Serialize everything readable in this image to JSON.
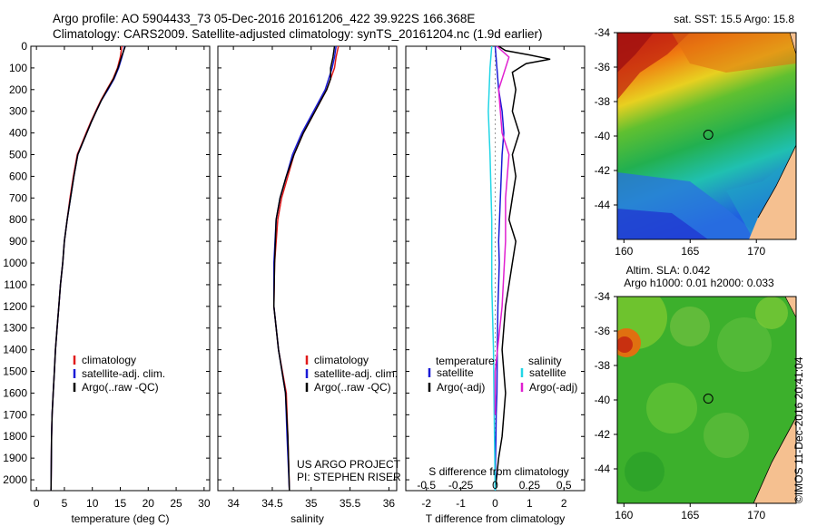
{
  "header": {
    "line1": "Argo profile: AO 5904433_73 05-Dec-2016 20161206_422 39.922S 166.368E",
    "line2": "Climatology: CARS2009. Satellite-adjusted climatology: synTS_20161204.nc (1.9d earlier)"
  },
  "credit": "©IMOS 11-Dec-2016 20:41:04",
  "colors": {
    "climatology": "#e01b1b",
    "satellite": "#1a1ad6",
    "argo": "#000000",
    "salinity_satellite": "#22d6e6",
    "salinity_argo": "#e020d0"
  },
  "chart_data": [
    {
      "type": "line",
      "id": "temperature",
      "xlabel": "temperature (deg C)",
      "ylabel": "",
      "xlim": [
        -1,
        31
      ],
      "ylim": [
        2050,
        0
      ],
      "xticks": [
        0,
        5,
        10,
        15,
        20,
        25,
        30
      ],
      "yticks": [
        0,
        100,
        200,
        300,
        400,
        500,
        600,
        700,
        800,
        900,
        1000,
        1100,
        1200,
        1300,
        1400,
        1500,
        1600,
        1700,
        1800,
        1900,
        2000
      ],
      "legend": [
        "climatology",
        "satellite-adj. clim.",
        "Argo(..raw -QC)"
      ],
      "series": [
        {
          "name": "climatology",
          "color": "#e01b1b",
          "x": [
            15.3,
            15.0,
            14.5,
            13.7,
            12.6,
            11.5,
            10.6,
            9.7,
            8.9,
            8.1,
            7.3,
            6.6,
            6.0,
            5.5,
            5.0,
            4.7,
            4.3,
            4.0,
            3.7,
            3.4,
            3.2,
            3.0,
            2.8,
            2.7,
            2.6
          ],
          "y": [
            0,
            50,
            100,
            150,
            200,
            250,
            300,
            350,
            400,
            450,
            500,
            600,
            700,
            800,
            900,
            1000,
            1100,
            1200,
            1300,
            1400,
            1500,
            1600,
            1700,
            1800,
            2050
          ]
        },
        {
          "name": "satellite-adj. clim.",
          "color": "#1a1ad6",
          "x": [
            15.8,
            15.3,
            14.7,
            13.9,
            12.8,
            11.6,
            10.7,
            9.8,
            9.0,
            8.2,
            7.4,
            6.7,
            6.1,
            5.5,
            5.0,
            4.7,
            4.3,
            4.0,
            3.7,
            3.4,
            3.2,
            3.0,
            2.8,
            2.7,
            2.6
          ],
          "y": [
            0,
            50,
            100,
            150,
            200,
            250,
            300,
            350,
            400,
            450,
            500,
            600,
            700,
            800,
            900,
            1000,
            1100,
            1200,
            1300,
            1400,
            1500,
            1600,
            1700,
            1800,
            2050
          ]
        },
        {
          "name": "Argo(..raw -QC)",
          "color": "#000000",
          "x": [
            15.9,
            15.2,
            14.6,
            13.8,
            12.7,
            11.6,
            10.7,
            9.8,
            9.0,
            8.2,
            7.4,
            6.7,
            6.1,
            5.5,
            5.0,
            4.7,
            4.3,
            4.0,
            3.7,
            3.4,
            3.2,
            3.0,
            2.8,
            2.7,
            2.6
          ],
          "y": [
            0,
            50,
            100,
            150,
            200,
            250,
            300,
            350,
            400,
            450,
            500,
            600,
            700,
            800,
            900,
            1000,
            1100,
            1200,
            1300,
            1400,
            1500,
            1600,
            1700,
            1800,
            2050
          ]
        }
      ]
    },
    {
      "type": "line",
      "id": "salinity",
      "xlabel": "salinity",
      "xlim": [
        33.8,
        36.1
      ],
      "ylim": [
        2050,
        0
      ],
      "xticks": [
        34,
        34.5,
        35,
        35.5,
        36
      ],
      "legend": [
        "climatology",
        "satellite-adj. clim.",
        "Argo(..raw -QC)"
      ],
      "annotation": [
        "US ARGO PROJECT",
        "PI: STEPHEN RISER"
      ],
      "series": [
        {
          "name": "climatology",
          "color": "#e01b1b",
          "x": [
            35.35,
            35.32,
            35.3,
            35.2,
            35.05,
            34.9,
            34.78,
            34.7,
            34.62,
            34.57,
            34.53,
            34.52,
            34.58,
            34.68,
            34.7,
            34.72
          ],
          "y": [
            0,
            50,
            100,
            200,
            300,
            400,
            500,
            600,
            700,
            800,
            1000,
            1200,
            1400,
            1600,
            1800,
            2050
          ]
        },
        {
          "name": "satellite-adj. clim.",
          "color": "#1a1ad6",
          "x": [
            35.32,
            35.3,
            35.27,
            35.18,
            35.03,
            34.88,
            34.76,
            34.68,
            34.6,
            34.55,
            34.52,
            34.52,
            34.58,
            34.67,
            34.69,
            34.72
          ],
          "y": [
            0,
            50,
            100,
            200,
            300,
            400,
            500,
            600,
            700,
            800,
            1000,
            1200,
            1400,
            1600,
            1800,
            2050
          ]
        },
        {
          "name": "Argo(..raw -QC)",
          "color": "#000000",
          "x": [
            35.3,
            35.28,
            35.25,
            35.25,
            35.2,
            35.05,
            34.9,
            34.78,
            34.68,
            34.6,
            34.55,
            34.53,
            34.52,
            34.58,
            34.67,
            34.7,
            34.72
          ],
          "y": [
            0,
            50,
            100,
            150,
            200,
            300,
            400,
            500,
            600,
            700,
            800,
            1000,
            1200,
            1400,
            1600,
            1800,
            2050
          ]
        }
      ]
    },
    {
      "type": "line",
      "id": "difference",
      "xlabel": "T difference from climatology",
      "top_xlabel": "S difference from climatology",
      "xlim": [
        -2.6,
        2.6
      ],
      "ylim": [
        2050,
        0
      ],
      "xticks": [
        -2,
        -1,
        0,
        1,
        2
      ],
      "top_ticks": [
        "-0.5",
        "-0.25",
        "0",
        "0.25",
        "0.5"
      ],
      "legend_headers": [
        "temperature",
        "salinity"
      ],
      "legend": [
        "satellite",
        "Argo(-adj)",
        "satellite",
        "Argo(-adj)"
      ],
      "series": [
        {
          "name": "temperature satellite",
          "color": "#1a1ad6",
          "x": [
            0.0,
            0.05,
            0.1,
            0.2,
            0.25,
            0.2,
            0.15,
            0.1,
            0.12,
            0.1,
            0.08,
            0.06,
            0.05,
            0.03,
            0.02,
            0.01,
            0.0
          ],
          "y": [
            0,
            100,
            200,
            300,
            400,
            500,
            700,
            900,
            1000,
            1100,
            1200,
            1400,
            1600,
            1700,
            1800,
            1900,
            2050
          ]
        },
        {
          "name": "temperature Argo(-adj)",
          "color": "#000000",
          "x": [
            0.1,
            0.3,
            1.0,
            1.6,
            0.9,
            0.5,
            0.6,
            0.5,
            0.7,
            0.5,
            0.6,
            0.5,
            0.4,
            0.6,
            0.5,
            0.4,
            0.3,
            0.2,
            0.3,
            0.2,
            0.1,
            0.0
          ],
          "y": [
            0,
            20,
            40,
            60,
            80,
            120,
            200,
            300,
            400,
            500,
            600,
            700,
            800,
            900,
            1000,
            1100,
            1200,
            1400,
            1600,
            1800,
            1900,
            2050
          ]
        },
        {
          "name": "salinity satellite",
          "color": "#22d6e6",
          "x": [
            -0.1,
            -0.15,
            -0.2,
            -0.15,
            -0.1,
            -0.1,
            -0.05,
            -0.03,
            0.0
          ],
          "y": [
            0,
            100,
            300,
            500,
            800,
            1100,
            1400,
            1700,
            2050
          ]
        },
        {
          "name": "salinity Argo(-adj)",
          "color": "#e020d0",
          "x": [
            0.05,
            0.4,
            0.1,
            0.2,
            0.4,
            0.3,
            0.3,
            0.2,
            0.0,
            0.0
          ],
          "y": [
            0,
            50,
            200,
            400,
            500,
            700,
            900,
            1200,
            1500,
            1700
          ]
        }
      ]
    },
    {
      "type": "heatmap",
      "id": "sst_map",
      "title": "sat. SST: 15.5 Argo: 15.8",
      "xlim": [
        159.5,
        173
      ],
      "ylim": [
        -46,
        -34
      ],
      "xticks": [
        160,
        165,
        170
      ],
      "yticks": [
        -34,
        -36,
        -38,
        -40,
        -42,
        -44
      ],
      "float_position": {
        "lon": 166.368,
        "lat": -39.922
      }
    },
    {
      "type": "heatmap",
      "id": "sla_map",
      "title": "Altim. SLA: 0.042",
      "subtitle": "Argo h1000: 0.01 h2000: 0.033",
      "xlim": [
        159.5,
        173
      ],
      "ylim": [
        -46,
        -34
      ],
      "xticks": [
        160,
        165,
        170
      ],
      "yticks": [
        -34,
        -36,
        -38,
        -40,
        -42,
        -44
      ],
      "float_position": {
        "lon": 166.368,
        "lat": -39.922
      }
    }
  ]
}
